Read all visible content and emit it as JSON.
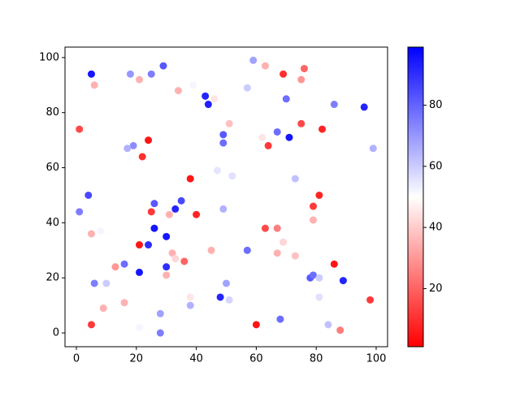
{
  "chart_data": {
    "type": "scatter",
    "colormap": "bwr_r",
    "x": [
      5,
      6,
      18,
      21,
      25,
      29,
      34,
      39,
      43,
      44,
      46,
      59,
      63,
      69,
      57,
      75,
      76,
      70,
      86,
      96,
      1,
      24,
      19,
      17,
      22,
      49,
      49,
      51,
      62,
      64,
      67,
      71,
      75,
      82,
      99,
      38,
      47,
      52,
      73,
      4,
      1,
      26,
      35,
      25,
      33,
      31,
      40,
      49,
      81,
      79,
      26,
      63,
      67,
      79,
      8,
      5,
      21,
      24,
      30,
      69,
      57,
      45,
      32,
      33,
      36,
      73,
      67,
      86,
      16,
      13,
      30,
      21,
      30,
      6,
      10,
      39,
      50,
      78,
      79,
      81,
      89,
      38,
      38,
      48,
      51,
      81,
      9,
      16,
      98,
      28,
      21,
      5,
      60,
      68,
      84,
      88,
      28
    ],
    "y": [
      94,
      90,
      94,
      92,
      94,
      97,
      88,
      90,
      86,
      83,
      85,
      99,
      97,
      94,
      89,
      92,
      96,
      85,
      83,
      82,
      74,
      70,
      68,
      67,
      64,
      72,
      69,
      76,
      71,
      68,
      73,
      71,
      76,
      74,
      67,
      56,
      59,
      57,
      56,
      50,
      44,
      47,
      48,
      44,
      45,
      43,
      43,
      45,
      50,
      46,
      38,
      38,
      38,
      41,
      37,
      36,
      32,
      32,
      35,
      33,
      30,
      30,
      29,
      27,
      26,
      28,
      29,
      25,
      25,
      24,
      24,
      22,
      21,
      18,
      18,
      16,
      18,
      20,
      21,
      20,
      19,
      13,
      10,
      13,
      12,
      13,
      9,
      11,
      12,
      7,
      2,
      3,
      3,
      5,
      3,
      1,
      0
    ],
    "c": [
      95,
      35,
      70,
      35,
      75,
      82,
      35,
      52,
      92,
      93,
      45,
      68,
      35,
      10,
      60,
      30,
      20,
      78,
      75,
      92,
      15,
      5,
      72,
      65,
      10,
      82,
      78,
      38,
      45,
      12,
      78,
      95,
      15,
      8,
      65,
      5,
      55,
      56,
      62,
      85,
      75,
      82,
      85,
      12,
      92,
      35,
      8,
      65,
      8,
      12,
      95,
      15,
      25,
      35,
      52,
      35,
      5,
      90,
      95,
      42,
      78,
      35,
      35,
      42,
      20,
      38,
      35,
      5,
      78,
      30,
      90,
      95,
      35,
      75,
      60,
      50,
      68,
      82,
      78,
      60,
      92,
      45,
      65,
      92,
      58,
      56,
      35,
      35,
      12,
      68,
      52,
      12,
      5,
      78,
      62,
      25,
      75
    ],
    "xlim": [
      -3.8,
      103.8
    ],
    "ylim": [
      -5,
      103.8
    ],
    "clim": [
      1,
      99
    ],
    "xticks": [
      0,
      20,
      40,
      60,
      80,
      100
    ],
    "yticks": [
      0,
      20,
      40,
      60,
      80,
      100
    ],
    "cticks": [
      20,
      40,
      60,
      80
    ]
  }
}
